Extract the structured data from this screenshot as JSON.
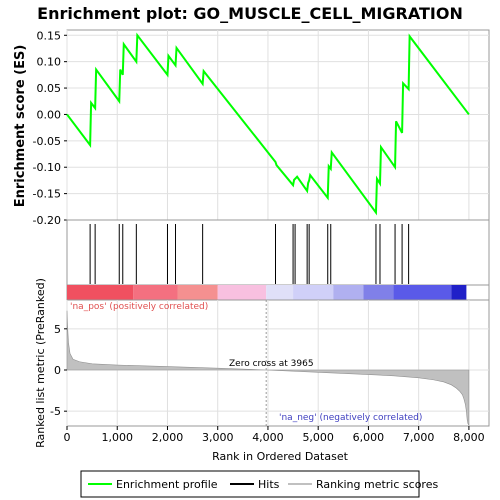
{
  "chart_data": {
    "type": "line",
    "title": "Enrichment plot: GO_MUSCLE_CELL_MIGRATION",
    "top_panel": {
      "ylabel": "Enrichment score (ES)",
      "ylim": [
        -0.2,
        0.16
      ],
      "yticks": [
        "0.15",
        "0.10",
        "0.05",
        "0.00",
        "-0.05",
        "-0.10",
        "-0.15",
        "-0.20"
      ],
      "ytick_values": [
        0.15,
        0.1,
        0.05,
        0.0,
        -0.05,
        -0.1,
        -0.15,
        -0.2
      ],
      "series": [
        {
          "name": "Enrichment profile",
          "color": "#00ff00",
          "x": [
            0,
            460,
            480,
            560,
            580,
            1040,
            1060,
            1110,
            1130,
            1380,
            1400,
            2000,
            2020,
            2160,
            2180,
            2700,
            2720,
            4150,
            4170,
            4500,
            4520,
            4560,
            4580,
            4780,
            4800,
            4820,
            4840,
            5190,
            5210,
            5250,
            5270,
            6150,
            6170,
            6230,
            6250,
            6530,
            6550,
            6670,
            6690,
            6800,
            6820,
            8000
          ],
          "y": [
            0.0,
            -0.058,
            0.022,
            0.012,
            0.085,
            0.025,
            0.085,
            0.075,
            0.133,
            0.1,
            0.15,
            0.075,
            0.111,
            0.093,
            0.126,
            0.058,
            0.082,
            -0.09,
            -0.096,
            -0.134,
            -0.124,
            -0.12,
            -0.118,
            -0.145,
            -0.13,
            -0.125,
            -0.115,
            -0.158,
            -0.098,
            -0.103,
            -0.072,
            -0.186,
            -0.122,
            -0.131,
            -0.062,
            -0.1,
            -0.013,
            -0.035,
            0.059,
            0.048,
            0.148,
            0.0
          ]
        }
      ]
    },
    "hits": {
      "name": "Hits",
      "x": [
        460,
        560,
        1040,
        1110,
        1380,
        2000,
        2160,
        2700,
        4150,
        4500,
        4540,
        4780,
        4820,
        5190,
        5250,
        6150,
        6230,
        6530,
        6670,
        6800
      ]
    },
    "color_bar": {
      "segments": [
        {
          "start": 0,
          "end": 1320,
          "color": "#f05060"
        },
        {
          "start": 1320,
          "end": 2200,
          "color": "#f47080"
        },
        {
          "start": 2200,
          "end": 3000,
          "color": "#f59090"
        },
        {
          "start": 3000,
          "end": 3965,
          "color": "#f8c0e0"
        },
        {
          "start": 3965,
          "end": 4500,
          "color": "#e0e0f8"
        },
        {
          "start": 4500,
          "end": 5300,
          "color": "#d0d0f8"
        },
        {
          "start": 5300,
          "end": 5900,
          "color": "#b0b0f0"
        },
        {
          "start": 5900,
          "end": 6500,
          "color": "#8080e8"
        },
        {
          "start": 6500,
          "end": 7650,
          "color": "#5a5ae8"
        },
        {
          "start": 7650,
          "end": 7950,
          "color": "#2020c8"
        }
      ]
    },
    "bottom_panel": {
      "ylabel": "Ranked list metric (PreRanked)",
      "ylim": [
        -6.8,
        8.5
      ],
      "yticks": [
        "5",
        "0",
        "-5"
      ],
      "ytick_values": [
        5,
        0,
        -5
      ],
      "series": [
        {
          "name": "Ranking metric scores",
          "color": "#c0c0c0",
          "x": [
            0,
            10,
            30,
            60,
            120,
            250,
            500,
            1000,
            2000,
            3000,
            3965,
            5000,
            6000,
            6500,
            7000,
            7300,
            7500,
            7650,
            7750,
            7820,
            7870,
            7900,
            7930,
            7950,
            7965,
            7980,
            8000
          ],
          "y": [
            7.2,
            5.4,
            3.3,
            2.0,
            1.3,
            1.0,
            0.75,
            0.6,
            0.42,
            0.22,
            0.0,
            -0.28,
            -0.55,
            -0.7,
            -0.95,
            -1.2,
            -1.45,
            -1.8,
            -2.2,
            -2.6,
            -3.0,
            -3.5,
            -4.2,
            -5.0,
            -6.0,
            -6.5,
            -6.7
          ]
        }
      ],
      "annotations": {
        "pos_label": "'na_pos' (positively correlated)",
        "neg_label": "'na_neg' (negatively correlated)",
        "zero_cross": "Zero cross at 3965",
        "zero_cross_x": 3965
      }
    },
    "xaxis": {
      "label": "Rank in Ordered Dataset",
      "xlim": [
        0,
        8400
      ],
      "ticks": [
        "0",
        "1,000",
        "2,000",
        "3,000",
        "4,000",
        "5,000",
        "6,000",
        "7,000",
        "8,000"
      ],
      "tick_values": [
        0,
        1000,
        2000,
        3000,
        4000,
        5000,
        6000,
        7000,
        8000
      ]
    },
    "legend": {
      "placement": "bottom",
      "items": [
        "Enrichment profile",
        "Hits",
        "Ranking metric scores"
      ]
    }
  },
  "colors": {
    "profile": "#00ff00",
    "hit": "#000000",
    "metric": "#c0c0c0",
    "pos_label": "#e05050",
    "neg_label": "#4040c0"
  }
}
